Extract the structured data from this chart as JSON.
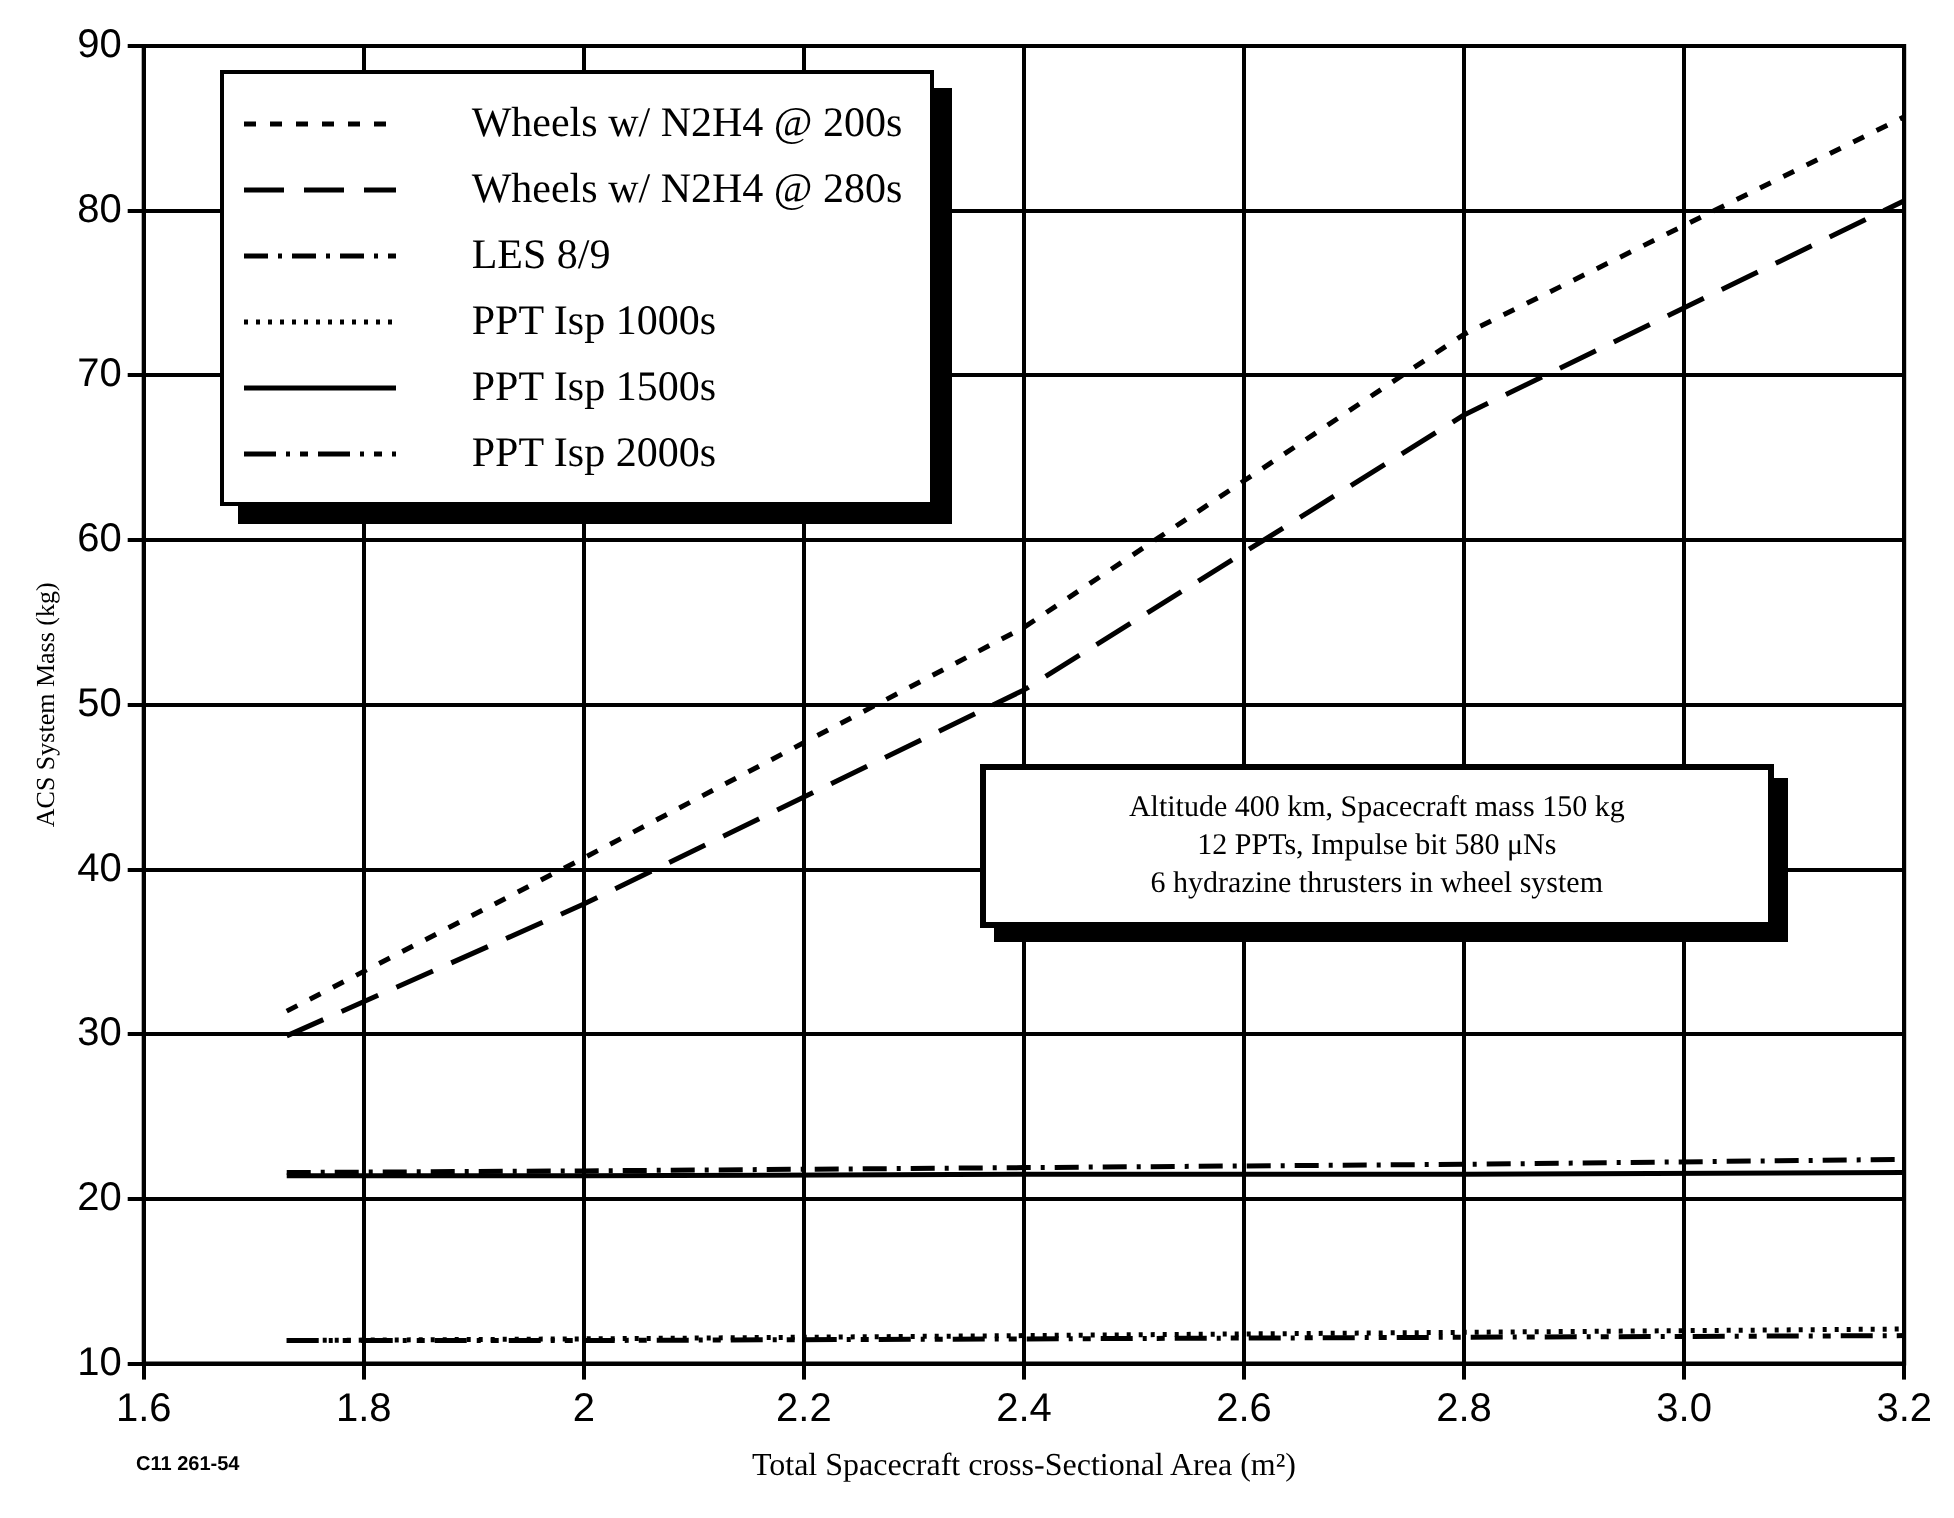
{
  "chart_data": {
    "type": "line",
    "xlabel": "Total Spacecraft cross-Sectional Area (m²)",
    "ylabel": "ACS System Mass (kg)",
    "x": [
      1.73,
      2.0,
      2.4,
      2.8,
      3.2
    ],
    "series": [
      {
        "name": "Wheels w/ N2H4 @ 200s",
        "color": "#000000",
        "line_style": "dashed",
        "values": [
          31.4,
          40.7,
          54.7,
          72.5,
          85.7
        ]
      },
      {
        "name": "Wheels w/ N2H4 @ 280s",
        "color": "#000000",
        "line_style": "dashed",
        "values": [
          29.9,
          37.9,
          50.9,
          67.6,
          80.6
        ]
      },
      {
        "name": "LES 8/9",
        "color": "#000000",
        "line_style": "dashed",
        "values": [
          21.6,
          21.7,
          21.9,
          22.1,
          22.4
        ]
      },
      {
        "name": "PPT Isp 1000s",
        "color": "#000000",
        "line_style": "dotted",
        "values": [
          11.4,
          11.5,
          11.7,
          11.9,
          12.1
        ]
      },
      {
        "name": "PPT Isp 1500s",
        "color": "#000000",
        "line_style": "solid",
        "values": [
          21.4,
          21.4,
          21.5,
          21.5,
          21.6
        ]
      },
      {
        "name": "PPT Isp 2000s",
        "color": "#000000",
        "line_style": "dashed",
        "values": [
          11.4,
          11.4,
          11.5,
          11.6,
          11.7
        ]
      }
    ],
    "xlim": [
      1.6,
      3.2
    ],
    "xticks": [
      1.6,
      1.8,
      2,
      2.2,
      2.4,
      2.6,
      2.8,
      {
        "value": 3,
        "label": "3.0"
      },
      3.2
    ],
    "ylim": [
      10,
      90
    ],
    "yticks": [
      10,
      20,
      30,
      40,
      50,
      60,
      70,
      80,
      90
    ],
    "grid": true,
    "legend": "top left",
    "marker": "none",
    "annotations": [
      "Altitude 400 km, Spacecraft mass 150 kg\n12 PPTs, Impulse bit 580 μNs\n6 hydrazine thrusters in wheel system",
      "C11 261-54"
    ]
  }
}
